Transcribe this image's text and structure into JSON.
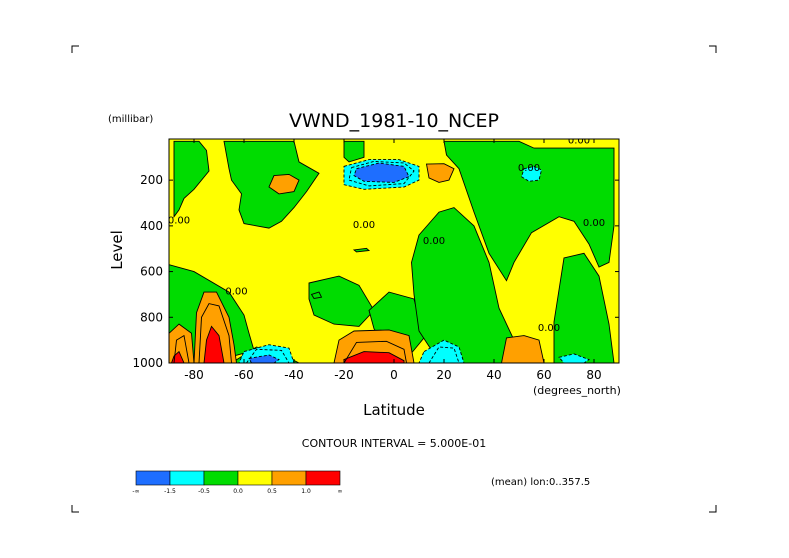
{
  "chart_data": {
    "type": "heatmap",
    "title": "VWND_1981-10_NCEP",
    "ylabel": "Level",
    "yunit": "(millibar)",
    "xlabel": "Latitude",
    "xunit": "(degrees_north)",
    "xlim": [
      -90,
      90
    ],
    "ylim": [
      1000,
      20
    ],
    "y_inverted": true,
    "xticks": [
      -80,
      -60,
      -40,
      -20,
      0,
      20,
      40,
      60,
      80
    ],
    "yticks": [
      200,
      400,
      600,
      800,
      1000
    ],
    "contour_interval_text": "CONTOUR INTERVAL = 5.000E-01",
    "averaging_text": "(mean) lon:0..357.5",
    "zero_contour_label": "0.00",
    "colorbar": {
      "labels": [
        "-∞",
        "-1.5",
        "-0.5",
        "0.0",
        "0.5",
        "1.0",
        "∞"
      ],
      "colors": [
        "#1e6eff",
        "#00ffff",
        "#00dc00",
        "#ffff00",
        "#ffa000",
        "#ff0000"
      ]
    },
    "level_colors": {
      "-2": "#1e6eff",
      "-1": "#00ffff",
      "0": "#00dc00",
      "1": "#ffff00",
      "2": "#ffa000",
      "3": "#ff0000"
    },
    "regions": [
      {
        "level": 0,
        "points": [
          [
            -88,
            30
          ],
          [
            -78,
            30
          ],
          [
            -75,
            70
          ],
          [
            -74,
            160
          ],
          [
            -80,
            240
          ],
          [
            -84,
            280
          ],
          [
            -86,
            330
          ],
          [
            -88,
            360
          ]
        ]
      },
      {
        "level": 0,
        "points": [
          [
            -68,
            30
          ],
          [
            -40,
            30
          ],
          [
            -38,
            120
          ],
          [
            -30,
            170
          ],
          [
            -35,
            250
          ],
          [
            -40,
            320
          ],
          [
            -45,
            380
          ],
          [
            -50,
            410
          ],
          [
            -60,
            390
          ],
          [
            -62,
            330
          ],
          [
            -61,
            260
          ],
          [
            -65,
            200
          ],
          [
            -66,
            150
          ]
        ]
      },
      {
        "level": 0,
        "points": [
          [
            -20,
            30
          ],
          [
            -12,
            30
          ],
          [
            -12,
            100
          ],
          [
            -18,
            120
          ],
          [
            -20,
            100
          ]
        ]
      },
      {
        "level": 0,
        "points": [
          [
            20,
            30
          ],
          [
            50,
            30
          ],
          [
            56,
            60
          ],
          [
            88,
            60
          ],
          [
            88,
            400
          ],
          [
            86,
            560
          ],
          [
            82,
            580
          ],
          [
            78,
            480
          ],
          [
            72,
            380
          ],
          [
            66,
            360
          ],
          [
            55,
            430
          ],
          [
            48,
            560
          ],
          [
            45,
            640
          ],
          [
            38,
            520
          ],
          [
            32,
            340
          ],
          [
            26,
            150
          ],
          [
            21,
            90
          ]
        ]
      },
      {
        "level": 0,
        "points": [
          [
            -90,
            570
          ],
          [
            -80,
            600
          ],
          [
            -66,
            690
          ],
          [
            -60,
            790
          ],
          [
            -58,
            870
          ],
          [
            -56,
            945
          ],
          [
            -66,
            975
          ],
          [
            -68,
            1000
          ],
          [
            -90,
            1000
          ]
        ]
      },
      {
        "level": 0,
        "points": [
          [
            -55,
            930
          ],
          [
            -45,
            960
          ],
          [
            -38,
            1000
          ],
          [
            -65,
            1000
          ]
        ]
      },
      {
        "level": 0,
        "points": [
          [
            -34,
            650
          ],
          [
            -22,
            620
          ],
          [
            -14,
            660
          ],
          [
            -8,
            770
          ],
          [
            -14,
            840
          ],
          [
            -24,
            830
          ],
          [
            -32,
            790
          ],
          [
            -34,
            720
          ]
        ]
      },
      {
        "level": 0,
        "points": [
          [
            -10,
            770
          ],
          [
            -2,
            690
          ],
          [
            8,
            720
          ],
          [
            12,
            890
          ],
          [
            6,
            970
          ],
          [
            -3,
            930
          ],
          [
            -8,
            850
          ]
        ]
      },
      {
        "level": 0,
        "points": [
          [
            10,
            440
          ],
          [
            18,
            340
          ],
          [
            24,
            320
          ],
          [
            32,
            400
          ],
          [
            38,
            560
          ],
          [
            42,
            760
          ],
          [
            48,
            900
          ],
          [
            58,
            960
          ],
          [
            60,
            1000
          ],
          [
            26,
            1000
          ],
          [
            16,
            960
          ],
          [
            10,
            860
          ],
          [
            8,
            700
          ],
          [
            7,
            560
          ]
        ]
      },
      {
        "level": 0,
        "points": [
          [
            68,
            540
          ],
          [
            76,
            520
          ],
          [
            82,
            620
          ],
          [
            86,
            830
          ],
          [
            88,
            1000
          ],
          [
            64,
            1000
          ],
          [
            64,
            820
          ]
        ]
      },
      {
        "level": 0,
        "points": [
          [
            -16,
            505
          ],
          [
            -11,
            498
          ],
          [
            -10,
            508
          ],
          [
            -15,
            514
          ]
        ]
      },
      {
        "level": 0,
        "points": [
          [
            -33,
            700
          ],
          [
            -30,
            690
          ],
          [
            -29,
            712
          ],
          [
            -32,
            718
          ]
        ]
      },
      {
        "level": -1,
        "points": [
          [
            -20,
            140
          ],
          [
            -10,
            110
          ],
          [
            2,
            110
          ],
          [
            10,
            140
          ],
          [
            10,
            200
          ],
          [
            4,
            230
          ],
          [
            -12,
            240
          ],
          [
            -20,
            220
          ]
        ]
      },
      {
        "level": -2,
        "points": [
          [
            -15,
            150
          ],
          [
            -6,
            125
          ],
          [
            4,
            140
          ],
          [
            6,
            185
          ],
          [
            0,
            210
          ],
          [
            -12,
            205
          ],
          [
            -16,
            180
          ]
        ]
      },
      {
        "level": -1,
        "points": [
          [
            -60,
            950
          ],
          [
            -50,
            920
          ],
          [
            -42,
            935
          ],
          [
            -40,
            1000
          ],
          [
            -62,
            1000
          ]
        ]
      },
      {
        "level": -2,
        "points": [
          [
            -58,
            980
          ],
          [
            -50,
            965
          ],
          [
            -46,
            985
          ],
          [
            -48,
            1000
          ],
          [
            -57,
            1000
          ]
        ]
      },
      {
        "level": -1,
        "points": [
          [
            12,
            950
          ],
          [
            20,
            900
          ],
          [
            26,
            930
          ],
          [
            28,
            1000
          ],
          [
            10,
            1000
          ]
        ]
      },
      {
        "level": -1,
        "points": [
          [
            52,
            150
          ],
          [
            56,
            140
          ],
          [
            59,
            155
          ],
          [
            58,
            200
          ],
          [
            54,
            205
          ],
          [
            51,
            185
          ]
        ]
      },
      {
        "level": -1,
        "points": [
          [
            66,
            975
          ],
          [
            72,
            960
          ],
          [
            78,
            985
          ],
          [
            76,
            1000
          ],
          [
            68,
            1000
          ]
        ]
      },
      {
        "level": 2,
        "points": [
          [
            -48,
            180
          ],
          [
            -42,
            175
          ],
          [
            -38,
            200
          ],
          [
            -40,
            250
          ],
          [
            -46,
            260
          ],
          [
            -50,
            230
          ]
        ]
      },
      {
        "level": 2,
        "points": [
          [
            13,
            130
          ],
          [
            20,
            128
          ],
          [
            24,
            150
          ],
          [
            22,
            200
          ],
          [
            18,
            210
          ],
          [
            14,
            190
          ]
        ]
      },
      {
        "level": 2,
        "points": [
          [
            45,
            890
          ],
          [
            52,
            880
          ],
          [
            58,
            900
          ],
          [
            60,
            1000
          ],
          [
            43,
            1000
          ]
        ]
      },
      {
        "level": 2,
        "points": [
          [
            -90,
            870
          ],
          [
            -86,
            830
          ],
          [
            -81,
            870
          ],
          [
            -80,
            1000
          ],
          [
            -90,
            1000
          ]
        ]
      },
      {
        "level": 2,
        "points": [
          [
            -80,
            1000
          ],
          [
            -79,
            780
          ],
          [
            -76,
            690
          ],
          [
            -71,
            690
          ],
          [
            -66,
            800
          ],
          [
            -64,
            920
          ],
          [
            -63,
            1000
          ]
        ]
      },
      {
        "level": 2,
        "points": [
          [
            -22,
            900
          ],
          [
            -16,
            860
          ],
          [
            -2,
            855
          ],
          [
            6,
            880
          ],
          [
            8,
            1000
          ],
          [
            -24,
            1000
          ]
        ]
      },
      {
        "level": 3,
        "points": [
          [
            -76,
            1000
          ],
          [
            -75,
            900
          ],
          [
            -73,
            840
          ],
          [
            -70,
            880
          ],
          [
            -68,
            1000
          ]
        ]
      },
      {
        "level": 3,
        "points": [
          [
            -88,
            970
          ],
          [
            -86,
            950
          ],
          [
            -84,
            1000
          ],
          [
            -89,
            1000
          ]
        ]
      },
      {
        "level": 3,
        "points": [
          [
            -20,
            985
          ],
          [
            -12,
            950
          ],
          [
            -2,
            955
          ],
          [
            4,
            990
          ],
          [
            4,
            1000
          ],
          [
            -20,
            1000
          ]
        ]
      }
    ],
    "inner_contours": [
      {
        "style": "solid",
        "points": [
          [
            -78,
            1000
          ],
          [
            -77,
            800
          ],
          [
            -74,
            740
          ],
          [
            -70,
            750
          ],
          [
            -66,
            880
          ],
          [
            -65,
            1000
          ]
        ]
      },
      {
        "style": "solid",
        "points": [
          [
            -20,
            1000
          ],
          [
            -15,
            910
          ],
          [
            -3,
            905
          ],
          [
            4,
            940
          ],
          [
            5,
            1000
          ]
        ]
      },
      {
        "style": "solid",
        "points": [
          [
            -88,
            1000
          ],
          [
            -87,
            900
          ],
          [
            -84,
            880
          ],
          [
            -82,
            1000
          ]
        ]
      },
      {
        "style": "dashed",
        "points": [
          [
            -17,
            145
          ],
          [
            -8,
            118
          ],
          [
            4,
            125
          ],
          [
            8,
            160
          ],
          [
            4,
            215
          ],
          [
            -10,
            225
          ],
          [
            -18,
            200
          ],
          [
            -17,
            145
          ]
        ]
      },
      {
        "style": "dashed",
        "points": [
          [
            -59,
            1000
          ],
          [
            -55,
            940
          ],
          [
            -45,
            945
          ],
          [
            -42,
            1000
          ]
        ]
      },
      {
        "style": "dashed",
        "points": [
          [
            14,
            1000
          ],
          [
            18,
            930
          ],
          [
            24,
            935
          ],
          [
            26,
            1000
          ]
        ]
      }
    ],
    "zero_label_positions": [
      [
        -86,
        390
      ],
      [
        -63,
        700
      ],
      [
        -12,
        410
      ],
      [
        16,
        480
      ],
      [
        54,
        160
      ],
      [
        74,
        40
      ],
      [
        62,
        860
      ],
      [
        80,
        400
      ]
    ]
  }
}
